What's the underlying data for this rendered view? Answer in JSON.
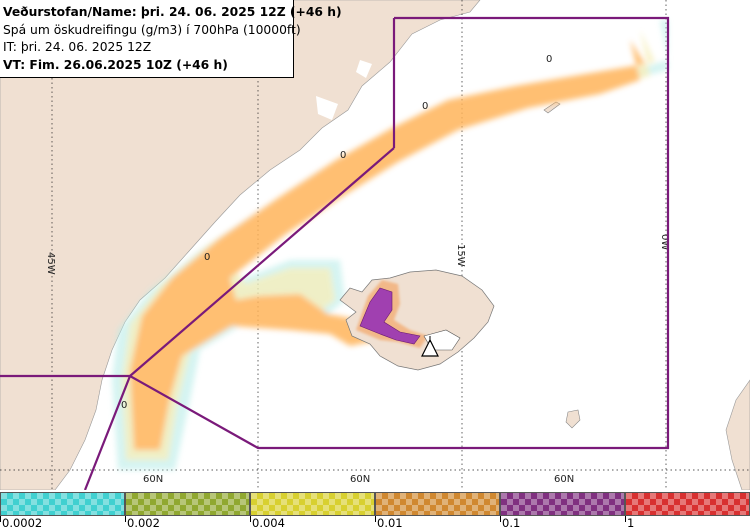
{
  "header": {
    "line1": "Veðurstofan/Name: þri. 24. 06. 2025 12Z (+46 h)",
    "line2": "Spá um öskudreifingu (g/m3) í 700hPa (10000ft)",
    "line3": "IT: þri. 24. 06. 2025 12Z",
    "line4": "VT: Fim. 26.06.2025 10Z (+46 h)"
  },
  "map": {
    "meridian_labels": [
      "45W",
      "15W",
      "0W"
    ],
    "parallel_labels": [
      "60N",
      "60N",
      "60N"
    ],
    "contour_labels": [
      "0",
      "0",
      "0",
      "0",
      "0"
    ],
    "colors": {
      "land": "#f0e0d2",
      "sea": "#ffffff",
      "grid": "#222222",
      "fir_boundary": "#7a1a7a",
      "ash_low": "#ffb45a",
      "ash_mid": "#f2b888",
      "ash_high": "#a040b0",
      "ash_trace_cyan": "#b8ece8",
      "ash_trace_yellow": "#f5ecb0"
    },
    "volcano_symbol": "volcano-triangle-icon"
  },
  "legend": {
    "ticks": [
      "0.0002",
      "0.002",
      "0.004",
      "0.01",
      "0.1",
      "1"
    ],
    "colors": [
      "#40d0d0",
      "#90a830",
      "#d8d030",
      "#d08830",
      "#803080",
      "#d83030"
    ]
  }
}
